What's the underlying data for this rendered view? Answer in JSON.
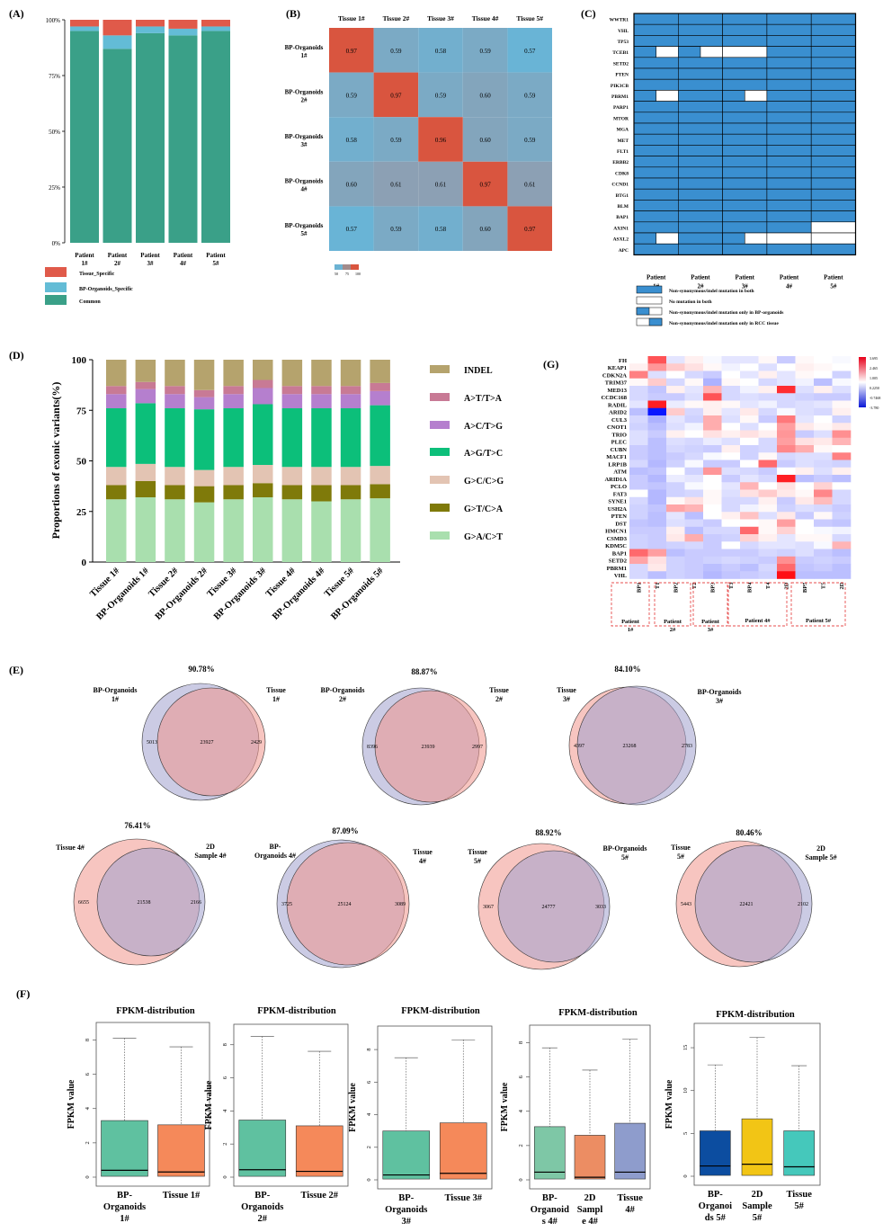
{
  "panel_labels": {
    "A": "(A)",
    "B": "(B)",
    "C": "(C)",
    "D": "(D)",
    "E": "(E)",
    "F": "(F)",
    "G": "(G)"
  },
  "colors": {
    "tissue_specific": "#e05a4a",
    "organoid_specific": "#63bcd6",
    "common": "#3aa088",
    "indel": "#b5a36d",
    "at_ta": "#c87a95",
    "ac_tg": "#b57fce",
    "ag_tc": "#0cbf7a",
    "gc_cg": "#e3c4b3",
    "gt_ca": "#7f7a0a",
    "ga_ct": "#a9dfae",
    "mut_blue": "#3a8fd0",
    "heat_low": "#0a17d6",
    "heat_high": "#e7001a"
  },
  "chart_data": [
    {
      "id": "A",
      "type": "bar",
      "stacked": true,
      "categories": [
        "Patient 1#",
        "Patient 2#",
        "Patient 3#",
        "Patient 4#",
        "Patient 5#"
      ],
      "series": [
        {
          "name": "Common",
          "values": [
            0.95,
            0.87,
            0.94,
            0.93,
            0.95
          ]
        },
        {
          "name": "BP-Organoids_Specific",
          "values": [
            0.02,
            0.06,
            0.03,
            0.03,
            0.02
          ]
        },
        {
          "name": "Tissue_Specific",
          "values": [
            0.03,
            0.07,
            0.03,
            0.04,
            0.03
          ]
        }
      ],
      "yticks": [
        "0%",
        "25%",
        "50%",
        "75%",
        "100%"
      ],
      "legend": [
        "Tissue_Specific",
        "BP-Organoids_Specific",
        "Common"
      ]
    },
    {
      "id": "B",
      "type": "heatmap",
      "columns": [
        "Tissue 1#",
        "Tissue 2#",
        "Tissue 3#",
        "Tissue 4#",
        "Tissue 5#"
      ],
      "rows": [
        [
          "BP-Organoids",
          "1#"
        ],
        [
          "BP-Organoids",
          "2#"
        ],
        [
          "BP-Organoids",
          "3#"
        ],
        [
          "BP-Organoids",
          "4#"
        ],
        [
          "BP-Organoids",
          "5#"
        ]
      ],
      "values": [
        [
          0.97,
          0.59,
          0.58,
          0.59,
          0.57
        ],
        [
          0.59,
          0.97,
          0.59,
          0.6,
          0.59
        ],
        [
          0.58,
          0.59,
          0.96,
          0.6,
          0.59
        ],
        [
          0.6,
          0.61,
          0.61,
          0.97,
          0.61
        ],
        [
          0.57,
          0.59,
          0.58,
          0.6,
          0.97
        ]
      ],
      "labels": [
        [
          "0.97",
          "0.59",
          "0.58",
          "0.59",
          "0.57"
        ],
        [
          "0.59",
          "0.97",
          "0.59",
          "0.60",
          "0.59"
        ],
        [
          "0.58",
          "0.59",
          "0.96",
          "0.60",
          "0.59"
        ],
        [
          "0.60",
          "0.61",
          "0.61",
          "0.97",
          "0.61"
        ],
        [
          "0.57",
          "0.59",
          "0.58",
          "0.60",
          "0.97"
        ]
      ],
      "scale_labels": [
        "50",
        "75",
        "100"
      ]
    },
    {
      "id": "C",
      "type": "table",
      "genes": [
        "WWTR1",
        "VHL",
        "TP53",
        "TCEB1",
        "SETD2",
        "PTEN",
        "PIK3CB",
        "PBRM1",
        "PARP1",
        "MTOR",
        "MGA",
        "MET",
        "FLT1",
        "ERBB2",
        "CDK8",
        "CCND1",
        "BTG1",
        "BLM",
        "BAP1",
        "AXIN1",
        "ASXL2",
        "APC"
      ],
      "patients": [
        [
          "Patient",
          "1#"
        ],
        [
          "Patient",
          "2#"
        ],
        [
          "Patient",
          "3#"
        ],
        [
          "Patient",
          "4#"
        ],
        [
          "Patient",
          "5#"
        ]
      ],
      "status": [
        [
          "both",
          "both",
          "both",
          "both",
          "both"
        ],
        [
          "both",
          "both",
          "both",
          "both",
          "both"
        ],
        [
          "both",
          "both",
          "both",
          "both",
          "both"
        ],
        [
          "organoid",
          "organoid",
          "none",
          "both",
          "both"
        ],
        [
          "both",
          "both",
          "both",
          "both",
          "both"
        ],
        [
          "both",
          "both",
          "both",
          "both",
          "both"
        ],
        [
          "both",
          "both",
          "both",
          "both",
          "both"
        ],
        [
          "organoid",
          "both",
          "organoid",
          "both",
          "both"
        ],
        [
          "both",
          "both",
          "both",
          "both",
          "both"
        ],
        [
          "both",
          "both",
          "both",
          "both",
          "both"
        ],
        [
          "both",
          "both",
          "both",
          "both",
          "both"
        ],
        [
          "both",
          "both",
          "both",
          "both",
          "both"
        ],
        [
          "both",
          "both",
          "both",
          "both",
          "both"
        ],
        [
          "both",
          "both",
          "both",
          "both",
          "both"
        ],
        [
          "both",
          "both",
          "both",
          "both",
          "both"
        ],
        [
          "both",
          "both",
          "both",
          "both",
          "both"
        ],
        [
          "both",
          "both",
          "both",
          "both",
          "both"
        ],
        [
          "both",
          "both",
          "both",
          "both",
          "both"
        ],
        [
          "both",
          "both",
          "both",
          "both",
          "both"
        ],
        [
          "both",
          "both",
          "both",
          "both",
          "none"
        ],
        [
          "organoid",
          "both",
          "organoid",
          "none",
          "none"
        ],
        [
          "both",
          "both",
          "both",
          "both",
          "both"
        ]
      ],
      "legend": [
        "Non-synonymous/indel mutation in both",
        "No mutation in both",
        "Non-synonymous/indel mutation only in BP-organoids",
        "Non-synonymous/indel mutation only in RCC tissue"
      ]
    },
    {
      "id": "D",
      "type": "bar",
      "stacked": true,
      "ylabel": "Proportions of exonic variants(%)",
      "categories": [
        "Tissue 1#",
        "BP-Organoids 1#",
        "Tissue 2#",
        "BP-Organoids 2#",
        "Tissue 3#",
        "BP-Organoids 3#",
        "Tissue 4#",
        "BP-Organoids 4#",
        "Tissue 5#",
        "BP-Organoids 5#"
      ],
      "ylim": [
        0,
        100
      ],
      "yticks": [
        "0",
        "25",
        "50",
        "75",
        "100"
      ],
      "series": [
        {
          "name": "G>A/C>T",
          "values": [
            31,
            32,
            31,
            29.5,
            31,
            32,
            31,
            30,
            31,
            31.5
          ]
        },
        {
          "name": "G>T/C>A",
          "values": [
            7,
            8,
            7,
            8,
            7,
            7,
            7,
            8,
            7,
            7
          ]
        },
        {
          "name": "G>C/C>G",
          "values": [
            9,
            8.5,
            9,
            8,
            9,
            9,
            9,
            9,
            9,
            9
          ]
        },
        {
          "name": "A>G/T>C",
          "values": [
            29,
            30,
            29,
            30,
            29,
            30,
            29,
            29,
            29,
            30
          ]
        },
        {
          "name": "A>C/T>G",
          "values": [
            7,
            7,
            7,
            6,
            7,
            8,
            7,
            7,
            7,
            7
          ]
        },
        {
          "name": "A>T/T>A",
          "values": [
            4,
            3.5,
            4,
            3.5,
            4,
            4,
            4,
            4,
            4,
            4
          ]
        },
        {
          "name": "INDEL",
          "values": [
            13,
            11,
            13,
            15,
            13,
            10,
            13,
            13,
            13,
            11.5
          ]
        }
      ]
    },
    {
      "id": "G",
      "type": "heatmap",
      "genes": [
        "FH",
        "KEAP1",
        "CDKN2A",
        "TRIM37",
        "MED13",
        "CCDC168",
        "RADIL",
        "ARID2",
        "CUL3",
        "CNOT1",
        "TRIO",
        "PLEC",
        "CUBN",
        "MACF1",
        "LRP1B",
        "ATM",
        "ARID1A",
        "PCLO",
        "FAT3",
        "SYNE1",
        "USH2A",
        "PTEN",
        "DST",
        "HMCN1",
        "CSMD3",
        "KDM5C",
        "BAP1",
        "SETD2",
        "PBRM1",
        "VHL"
      ],
      "samples": [
        "BP1",
        "T1",
        "BP2",
        "T2",
        "BP3",
        "T3",
        "BP4",
        "T4",
        "2D",
        "BP5",
        "T5",
        "2D"
      ],
      "groups": [
        "Patient 1#",
        "Patient 2#",
        "Patient 3#",
        "Patient 4#",
        "Patient 5#"
      ],
      "scale_labels": [
        "3.695",
        "2.465",
        "1.005",
        "0.2250",
        "-0.7468",
        "-3.780"
      ]
    },
    {
      "id": "E",
      "type": "venn",
      "diagrams": [
        {
          "pct": "90.78%",
          "left_label": "BP-Organoids\n1#",
          "right_label": "Tissue\n1#",
          "left": "5013",
          "mid": "23927",
          "right": "2429"
        },
        {
          "pct": "88.87%",
          "left_label": "BP-Organoids\n2#",
          "right_label": "Tissue\n2#",
          "left": "8396",
          "mid": "23939",
          "right": "2997"
        },
        {
          "pct": "84.10%",
          "left_label": "Tissue\n3#",
          "right_label": "BP-Organoids\n3#",
          "left": "4397",
          "mid": "23268",
          "right": "2783"
        },
        {
          "pct": "76.41%",
          "left_label": "Tissue 4#",
          "right_label": "2D\nSample 4#",
          "left": "6655",
          "mid": "21538",
          "right": "2166"
        },
        {
          "pct": "87.09%",
          "left_label": "BP-\nOrganoids 4#",
          "right_label": "Tissue\n4#",
          "left": "3725",
          "mid": "25124",
          "right": "3089"
        },
        {
          "pct": "88.92%",
          "left_label": "Tissue\n5#",
          "right_label": "BP-Organoids\n5#",
          "left": "3067",
          "mid": "24777",
          "right": "3033"
        },
        {
          "pct": "80.46%",
          "left_label": "Tissue\n5#",
          "right_label": "2D\nSample 5#",
          "left": "5443",
          "mid": "22421",
          "right": "2102"
        }
      ]
    },
    {
      "id": "F",
      "type": "box",
      "title": "FPKM-distribution",
      "ylabel": "FPKM value",
      "plots": [
        {
          "yticks": [
            "0",
            "2",
            "4",
            "6",
            "8"
          ],
          "ymax": 8.6,
          "boxes": [
            {
              "label": "BP-\nOrganoids\n1#",
              "color": "#5fc1a0",
              "q1": 0.05,
              "med": 0.4,
              "q3": 3.3,
              "max": 8.1
            },
            {
              "label": "Tissue 1#",
              "color": "#f5895a",
              "q1": 0.05,
              "med": 0.3,
              "q3": 3.05,
              "max": 7.6
            }
          ]
        },
        {
          "yticks": [
            "0",
            "2",
            "4",
            "6",
            "8"
          ],
          "ymax": 8.8,
          "boxes": [
            {
              "label": "BP-\nOrganoids\n2#",
              "color": "#5fc1a0",
              "q1": 0.05,
              "med": 0.45,
              "q3": 3.45,
              "max": 8.5
            },
            {
              "label": "Tissue 2#",
              "color": "#f5895a",
              "q1": 0.05,
              "med": 0.35,
              "q3": 3.1,
              "max": 7.6
            }
          ]
        },
        {
          "yticks": [
            "0",
            "2",
            "4",
            "6",
            "8"
          ],
          "ymax": 9.0,
          "boxes": [
            {
              "label": "BP-\nOrganoids\n3#",
              "color": "#5fc1a0",
              "q1": 0.05,
              "med": 0.3,
              "q3": 3.0,
              "max": 7.5
            },
            {
              "label": "Tissue 3#",
              "color": "#f5895a",
              "q1": 0.05,
              "med": 0.4,
              "q3": 3.5,
              "max": 8.6
            }
          ]
        },
        {
          "yticks": [
            "0",
            "2",
            "4",
            "6",
            "8"
          ],
          "ymax": 8.6,
          "boxes": [
            {
              "label": "BP-\nOrganoid\ns 4#",
              "color": "#7ec7a6",
              "q1": 0.05,
              "med": 0.45,
              "q3": 3.1,
              "max": 7.7
            },
            {
              "label": "2D\nSampl\ne 4#",
              "color": "#ec8d63",
              "q1": 0.05,
              "med": 0.15,
              "q3": 2.6,
              "max": 6.4
            },
            {
              "label": "Tissue\n4#",
              "color": "#8e9ccc",
              "q1": 0.05,
              "med": 0.45,
              "q3": 3.3,
              "max": 8.2
            }
          ]
        },
        {
          "yticks": [
            "0",
            "5",
            "10",
            "15"
          ],
          "ymax": 17,
          "boxes": [
            {
              "label": "BP-\nOrganoi\nds 5#",
              "color": "#0c4da0",
              "q1": 0.1,
              "med": 1.2,
              "q3": 5.3,
              "max": 13
            },
            {
              "label": "2D\nSample\n5#",
              "color": "#f2c515",
              "q1": 0.1,
              "med": 1.4,
              "q3": 6.7,
              "max": 16.2
            },
            {
              "label": "Tissue\n5#",
              "color": "#45c8bb",
              "q1": 0.1,
              "med": 1.1,
              "q3": 5.3,
              "max": 12.9
            }
          ]
        }
      ]
    }
  ]
}
